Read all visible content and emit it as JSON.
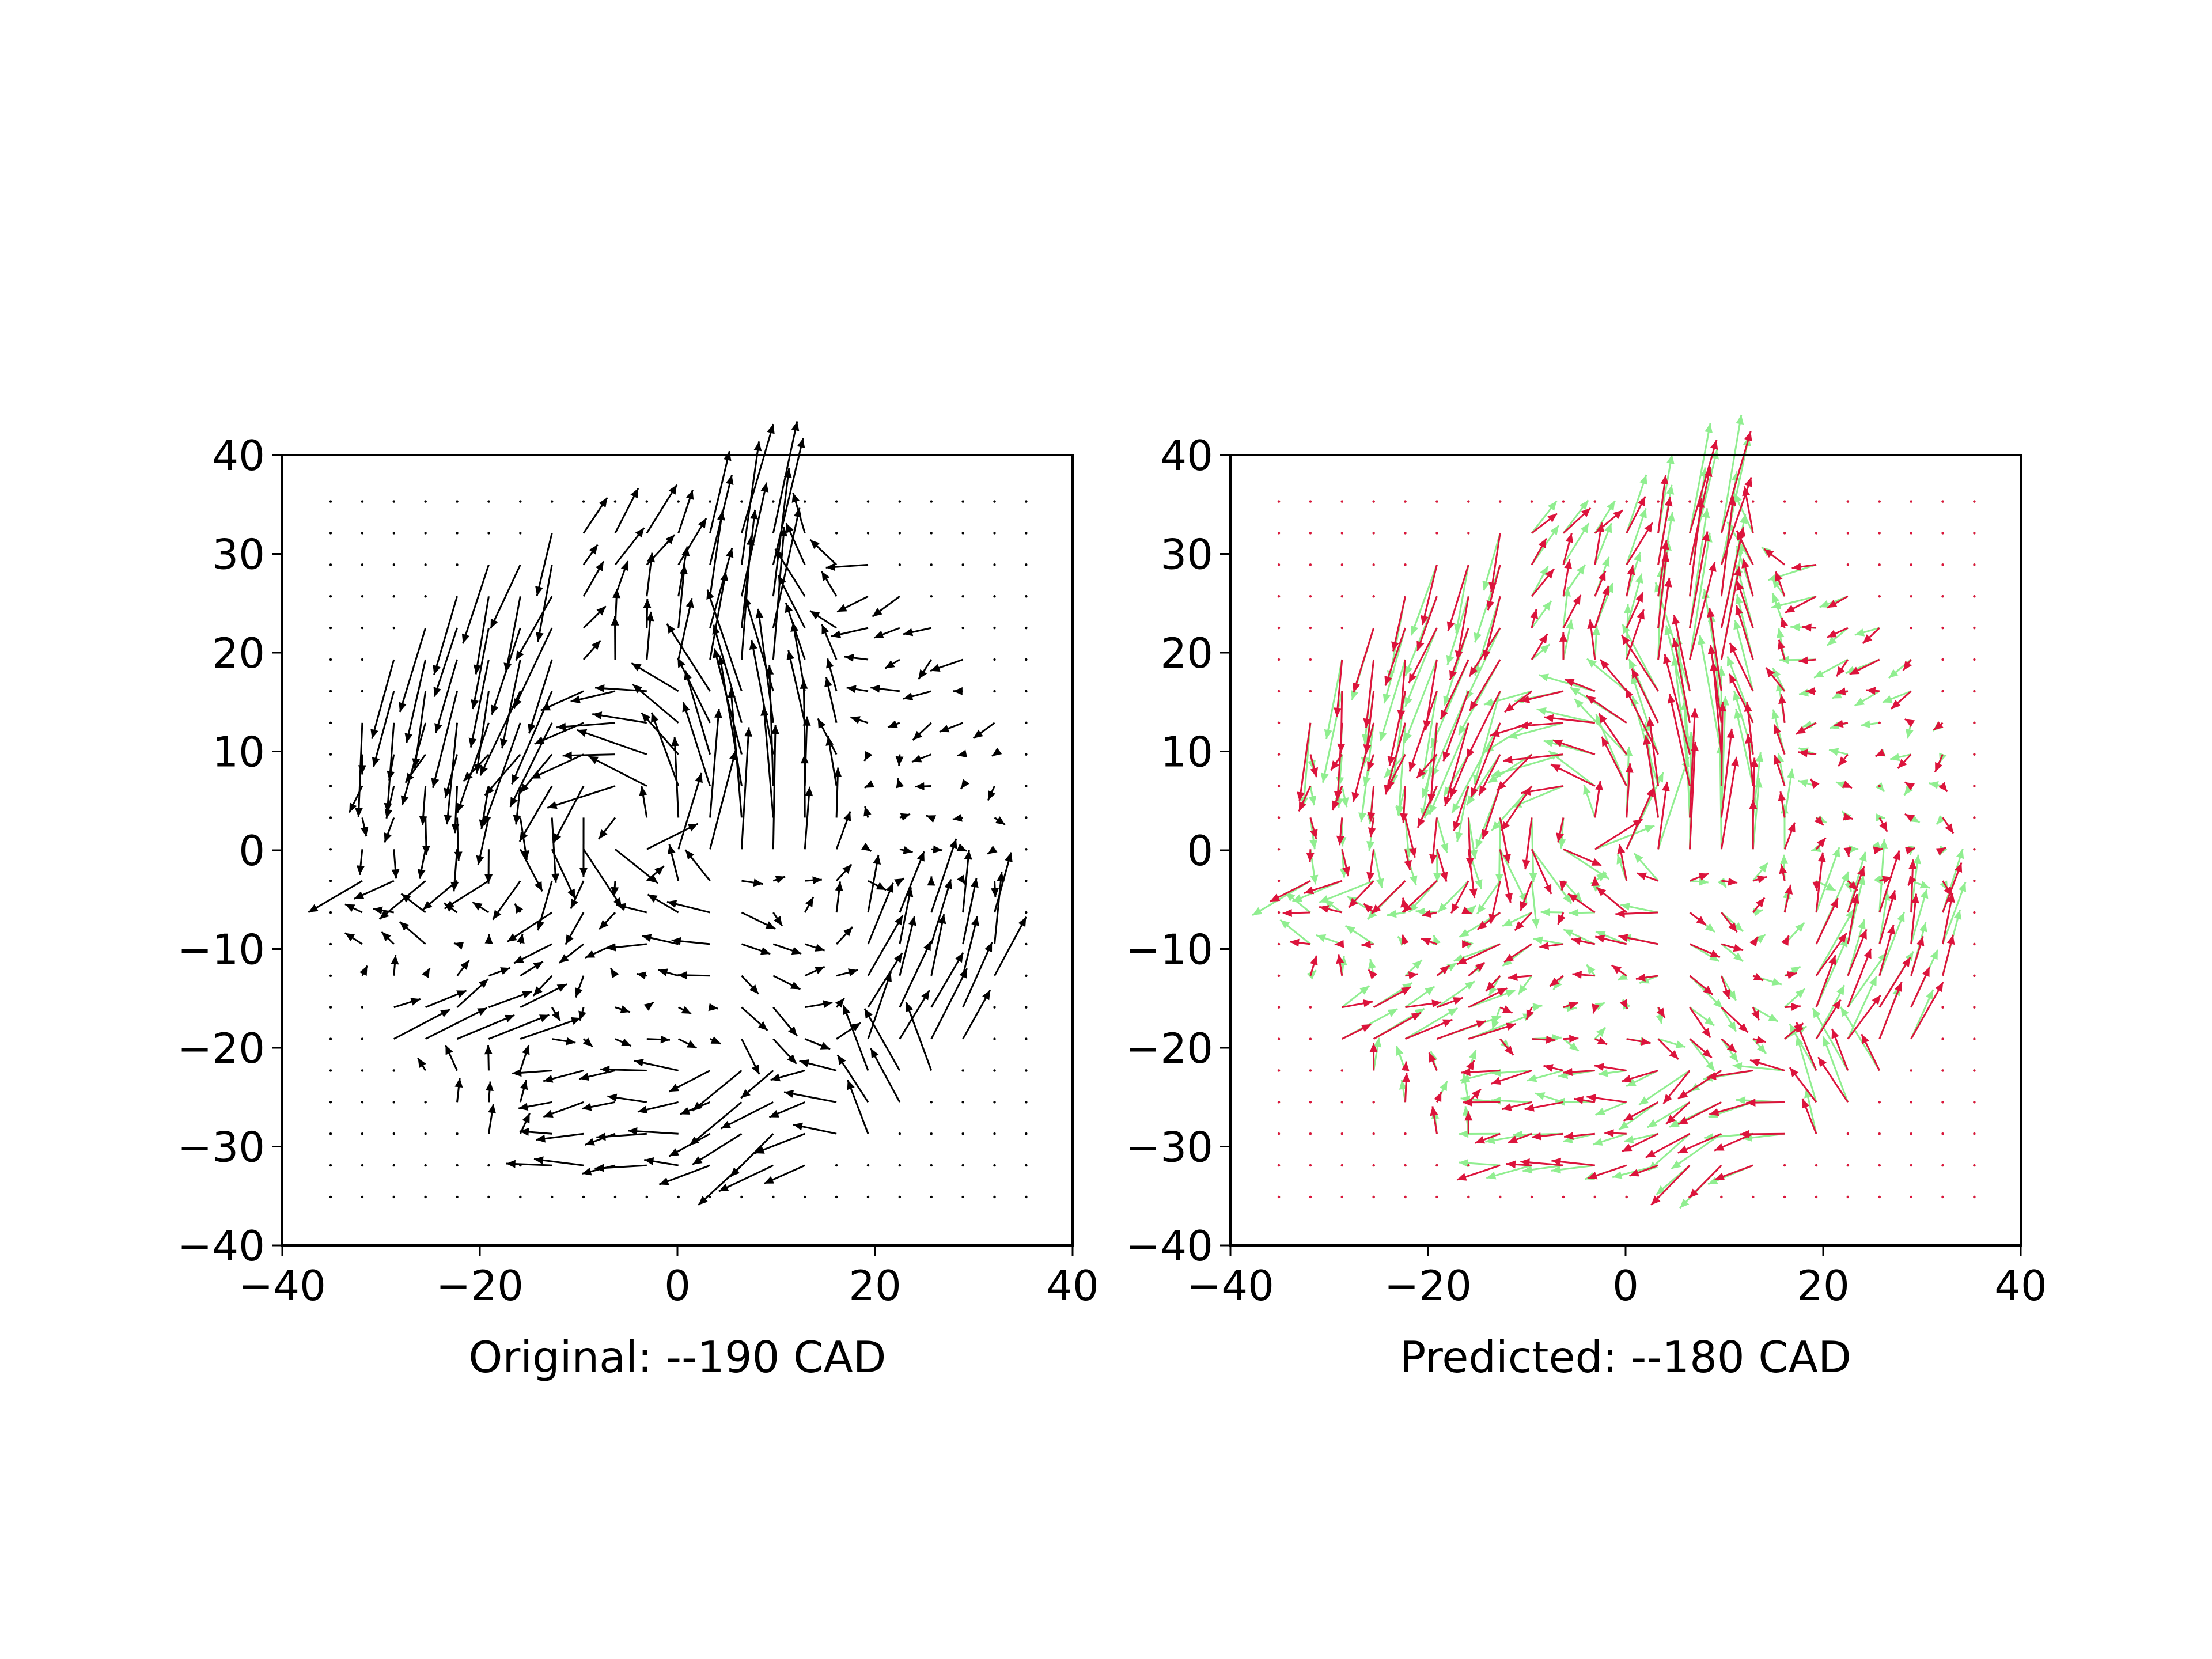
{
  "chart_data": [
    {
      "type": "quiver",
      "xlabel": "Original: --190 CAD",
      "ylabel": "",
      "xlim": [
        -40,
        40
      ],
      "ylim": [
        -40,
        40
      ],
      "xticks": [
        "−40",
        "−20",
        "0",
        "20",
        "40"
      ],
      "yticks": [
        "40",
        "30",
        "20",
        "10",
        "0",
        "−10",
        "−20",
        "−30",
        "−40"
      ],
      "grid": {
        "x0": -35.1,
        "y0": -35.1,
        "step": 3.2,
        "n": 23,
        "radius": 35
      },
      "series": [
        {
          "color": "#000000",
          "vectors": "field-original"
        }
      ]
    },
    {
      "type": "quiver",
      "xlabel": "Predicted: --180 CAD",
      "ylabel": "",
      "xlim": [
        -40,
        40
      ],
      "ylim": [
        -40,
        40
      ],
      "xticks": [
        "−40",
        "−20",
        "0",
        "20",
        "40"
      ],
      "yticks": [
        "40",
        "30",
        "20",
        "10",
        "0",
        "−10",
        "−20",
        "−30",
        "−40"
      ],
      "grid": {
        "x0": -35.1,
        "y0": -35.1,
        "step": 3.2,
        "n": 23,
        "radius": 35
      },
      "series": [
        {
          "color": "#90ee90",
          "vectors": "field-predicted-a"
        },
        {
          "color": "#dc143c",
          "vectors": "field-predicted-b"
        }
      ]
    }
  ]
}
